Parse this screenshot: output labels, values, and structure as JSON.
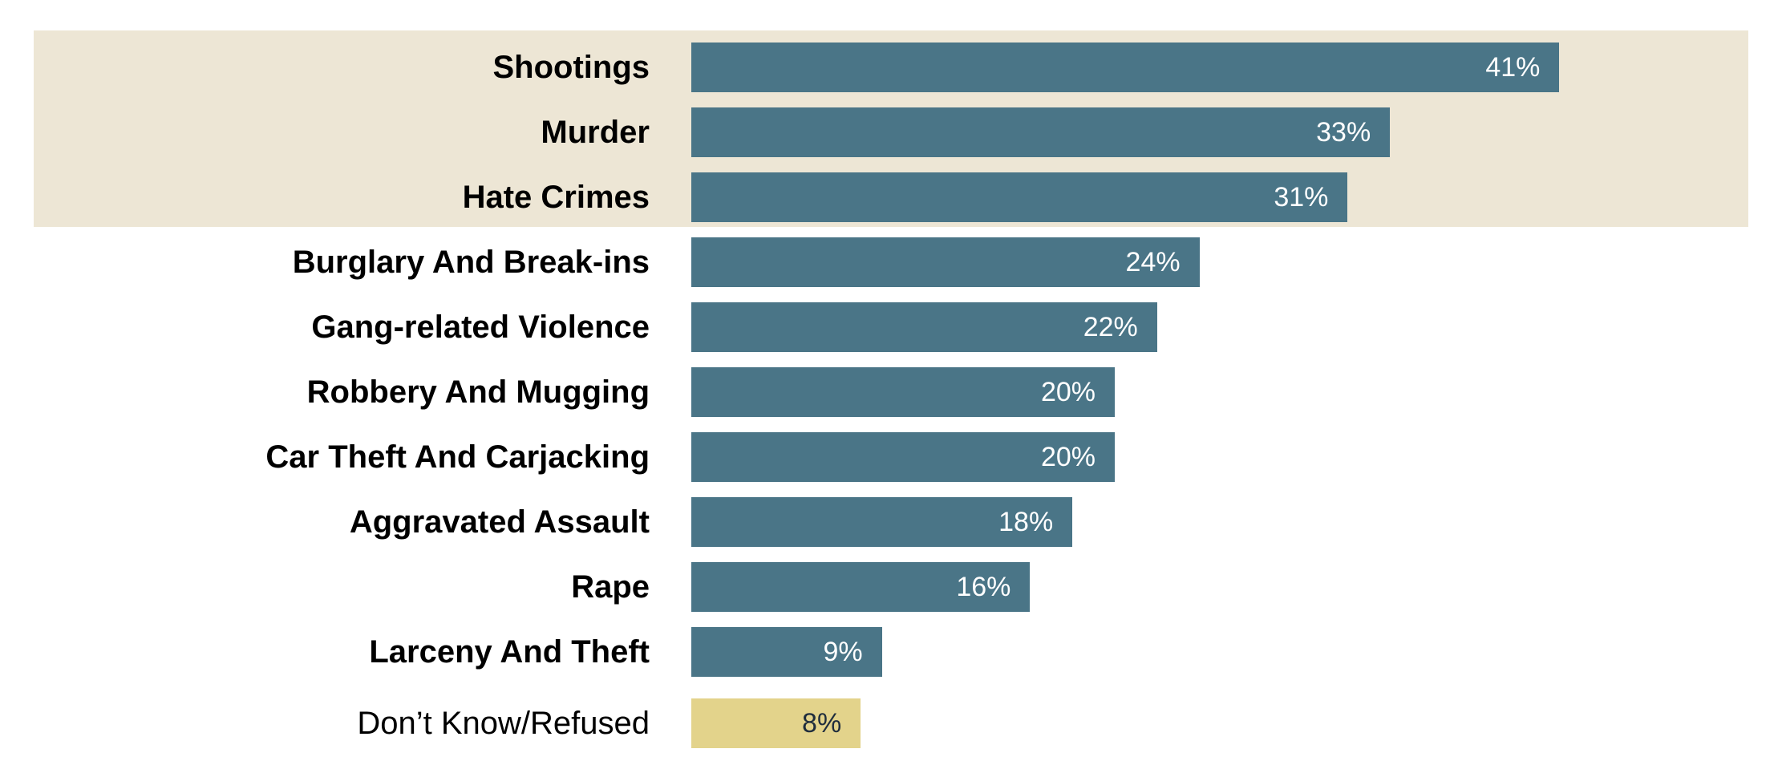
{
  "chart_data": {
    "type": "bar",
    "orientation": "horizontal",
    "categories": [
      "Shootings",
      "Murder",
      "Hate Crimes",
      "Burglary And Break-ins",
      "Gang-related Violence",
      "Robbery And Mugging",
      "Car Theft And Carjacking",
      "Aggravated Assault",
      "Rape",
      "Larceny And Theft",
      "Don’t Know/Refused"
    ],
    "values": [
      41,
      33,
      31,
      24,
      22,
      20,
      20,
      18,
      16,
      9,
      8
    ],
    "value_labels": [
      "41%",
      "33%",
      "31%",
      "24%",
      "22%",
      "20%",
      "20%",
      "18%",
      "16%",
      "9%",
      "8%"
    ],
    "unit": "%",
    "xlim": [
      0,
      100
    ],
    "highlighted_categories": [
      0,
      1,
      2
    ],
    "muted_categories": [
      10
    ],
    "legend": "none",
    "grid": false
  },
  "colors": {
    "bar": "#4a7587",
    "bar_muted": "#e3d38b",
    "highlight_band": "#ede6d5",
    "value_text": "#ffffff",
    "value_text_muted": "#1f2d3d",
    "label_text": "#000000"
  }
}
